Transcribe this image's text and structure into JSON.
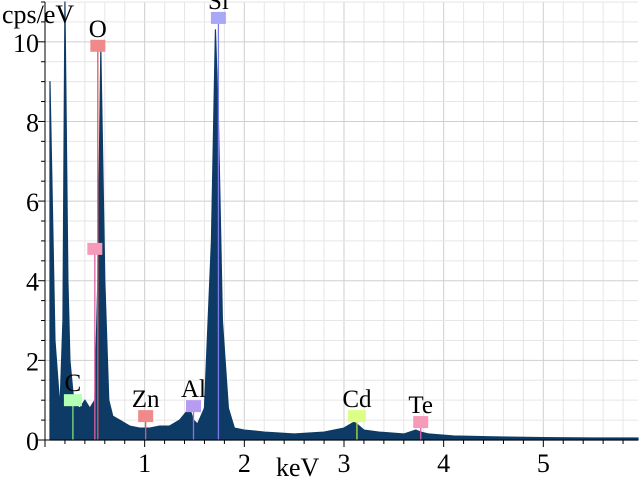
{
  "chart_data": {
    "type": "area",
    "xlabel": "keV",
    "ylabel": "cps/eV",
    "xlim": [
      0,
      5.95
    ],
    "ylim": [
      0,
      11
    ],
    "xticks": [
      "1",
      "2",
      "3",
      "4",
      "5"
    ],
    "yticks": [
      "0",
      "2",
      "4",
      "6",
      "8",
      "10"
    ],
    "grid": true,
    "series_color": "#0d3b66",
    "series": [
      {
        "x": [
          0.05,
          0.1,
          0.15,
          0.18,
          0.2,
          0.23,
          0.25,
          0.28,
          0.3,
          0.35,
          0.4,
          0.45,
          0.5,
          0.53,
          0.56,
          0.6,
          0.64,
          0.68,
          0.75,
          0.85,
          0.95,
          1.05,
          1.15,
          1.25,
          1.35,
          1.45,
          1.49,
          1.53,
          1.6,
          1.67,
          1.71,
          1.74,
          1.78,
          1.84,
          1.9,
          2.0,
          2.2,
          2.5,
          2.8,
          3.0,
          3.1,
          3.13,
          3.2,
          3.35,
          3.6,
          3.72,
          3.77,
          3.85,
          4.1,
          4.5,
          5.0,
          5.5,
          5.95
        ],
        "y": [
          9.0,
          2.5,
          0.8,
          3.0,
          11.0,
          4.0,
          2.0,
          1.2,
          0.9,
          0.8,
          1.0,
          0.8,
          1.0,
          4.0,
          9.8,
          4.0,
          1.0,
          0.6,
          0.5,
          0.35,
          0.3,
          0.3,
          0.35,
          0.35,
          0.5,
          0.8,
          0.5,
          0.4,
          0.8,
          5.0,
          10.3,
          8.0,
          3.0,
          0.8,
          0.3,
          0.25,
          0.2,
          0.15,
          0.2,
          0.3,
          0.45,
          0.4,
          0.25,
          0.2,
          0.15,
          0.25,
          0.2,
          0.15,
          0.1,
          0.08,
          0.06,
          0.05,
          0.05
        ]
      }
    ],
    "elements": [
      {
        "label": "C",
        "energy": 0.28,
        "marker_y": 1.0,
        "color": "#b3ffb3",
        "line_color": "#80e080"
      },
      {
        "label": "O",
        "energy": 0.53,
        "marker_y": 9.9,
        "color": "#f08a8a",
        "line_color": "#e05a5a"
      },
      {
        "label": "",
        "energy": 0.5,
        "marker_y": 4.8,
        "color": "#f59ab8",
        "line_color": "#e060a0"
      },
      {
        "label": "Zn",
        "energy": 1.01,
        "marker_y": 0.6,
        "color": "#f08a8a",
        "line_color": "#e05a5a"
      },
      {
        "label": "Al",
        "energy": 1.49,
        "marker_y": 0.85,
        "color": "#b79af2",
        "line_color": "#9a6ee0"
      },
      {
        "label": "Si",
        "energy": 1.74,
        "marker_y": 10.6,
        "color": "#a8a8f7",
        "line_color": "#7a7ae8"
      },
      {
        "label": "Cd",
        "energy": 3.13,
        "marker_y": 0.6,
        "color": "#ddff88",
        "line_color": "#b8e040"
      },
      {
        "label": "Te",
        "energy": 3.77,
        "marker_y": 0.45,
        "color": "#f59ab8",
        "line_color": "#e060a0"
      }
    ]
  }
}
